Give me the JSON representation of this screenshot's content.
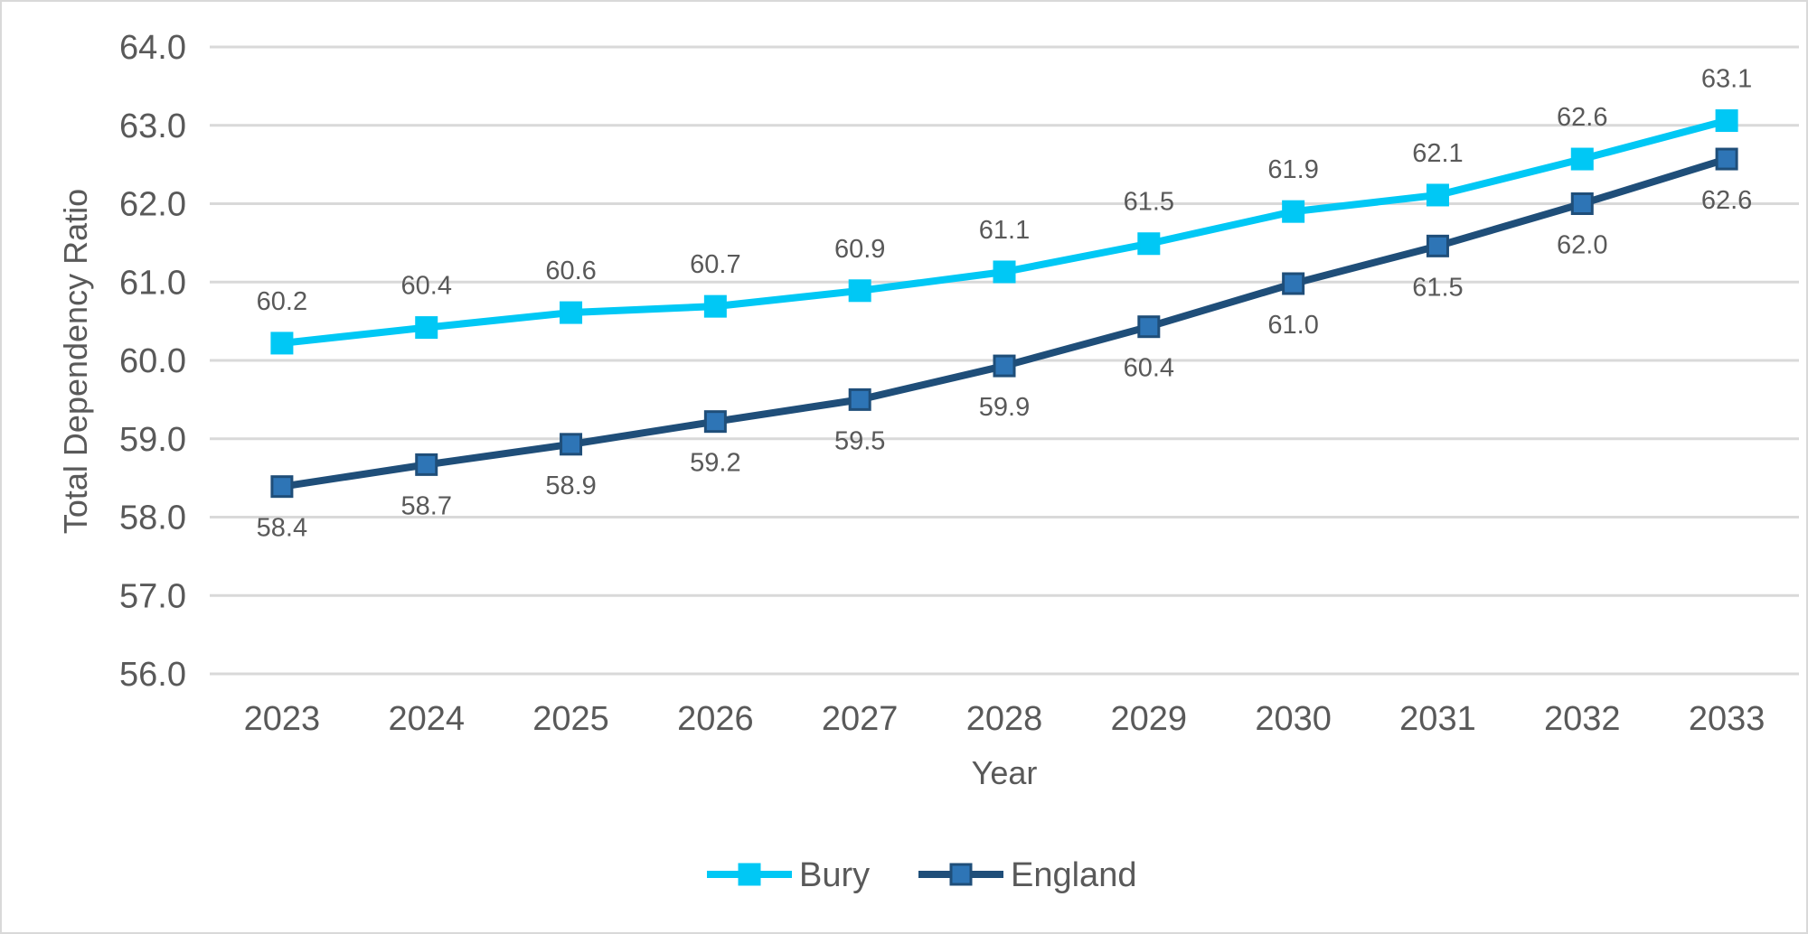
{
  "chart_data": {
    "type": "line",
    "title": "",
    "xlabel": "Year",
    "ylabel": "Total Dependency Ratio",
    "categories": [
      "2023",
      "2024",
      "2025",
      "2026",
      "2027",
      "2028",
      "2029",
      "2030",
      "2031",
      "2032",
      "2033"
    ],
    "y_ticks": [
      "56.0",
      "57.0",
      "58.0",
      "59.0",
      "60.0",
      "61.0",
      "62.0",
      "63.0",
      "64.0"
    ],
    "ylim": [
      56,
      64
    ],
    "grid": "horizontal",
    "legend_position": "bottom",
    "series": [
      {
        "name": "Bury",
        "color": "#00c8f5",
        "marker": "square",
        "label_position": "above",
        "values": [
          60.22,
          60.42,
          60.61,
          60.69,
          60.89,
          61.13,
          61.49,
          61.9,
          62.11,
          62.57,
          63.06
        ],
        "labels": [
          "60.2",
          "60.4",
          "60.6",
          "60.7",
          "60.9",
          "61.1",
          "61.5",
          "61.9",
          "62.1",
          "62.6",
          "63.1"
        ]
      },
      {
        "name": "England",
        "color": "#1f4e79",
        "marker_fill": "#2e75b6",
        "marker": "square",
        "label_position": "below",
        "values": [
          58.39,
          58.67,
          58.93,
          59.22,
          59.5,
          59.93,
          60.43,
          60.98,
          61.46,
          62.0,
          62.57
        ],
        "labels": [
          "58.4",
          "58.7",
          "58.9",
          "59.2",
          "59.5",
          "59.9",
          "60.4",
          "61.0",
          "61.5",
          "62.0",
          "62.6"
        ]
      }
    ]
  }
}
